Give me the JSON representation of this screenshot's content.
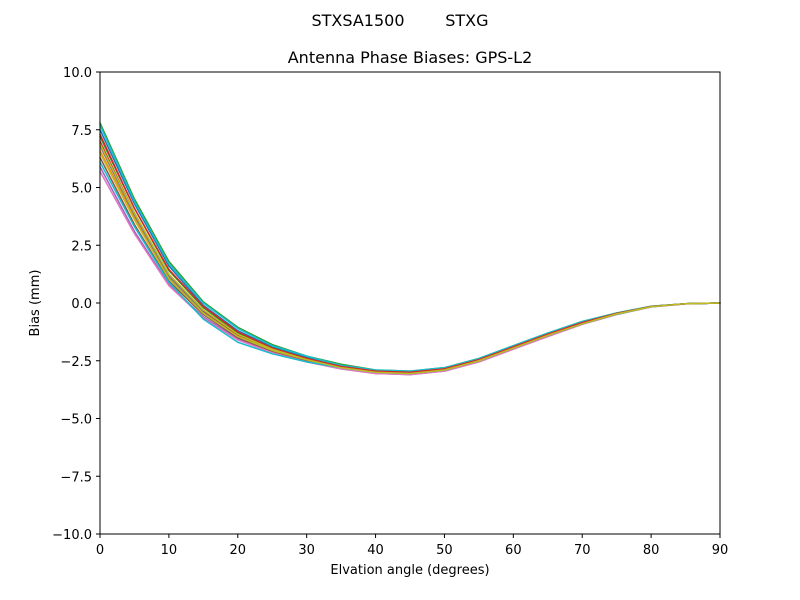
{
  "chart_data": {
    "type": "line",
    "suptitle": "STXSA1500        STXG",
    "title": "Antenna Phase Biases: GPS-L2",
    "xlabel": "Elvation angle (degrees)",
    "ylabel": "Bias (mm)",
    "xlim": [
      0,
      90
    ],
    "ylim": [
      -10,
      10
    ],
    "xticks": [
      0,
      10,
      20,
      30,
      40,
      50,
      60,
      70,
      80,
      90
    ],
    "yticks": [
      10.0,
      7.5,
      5.0,
      2.5,
      0.0,
      -2.5,
      -5.0,
      -7.5,
      -10.0
    ],
    "xtick_labels": [
      "0",
      "10",
      "20",
      "30",
      "40",
      "50",
      "60",
      "70",
      "80",
      "90"
    ],
    "ytick_labels": [
      "10.0",
      "7.5",
      "5.0",
      "2.5",
      "0.0",
      "−2.5",
      "−5.0",
      "−7.5",
      "−10.0"
    ],
    "grid": false,
    "legend": "none",
    "x": [
      0,
      5,
      10,
      15,
      20,
      25,
      30,
      35,
      40,
      45,
      50,
      55,
      60,
      65,
      70,
      75,
      80,
      85,
      90
    ],
    "series": [
      {
        "color": "#1f77b4",
        "values": [
          7.5,
          4.3,
          1.6,
          -0.1,
          -1.2,
          -1.9,
          -2.35,
          -2.7,
          -2.95,
          -3.0,
          -2.85,
          -2.45,
          -1.9,
          -1.35,
          -0.85,
          -0.45,
          -0.15,
          -0.03,
          0.0
        ]
      },
      {
        "color": "#ff7f0e",
        "values": [
          6.6,
          3.7,
          1.1,
          -0.45,
          -1.45,
          -2.05,
          -2.45,
          -2.8,
          -3.0,
          -3.05,
          -2.9,
          -2.5,
          -1.95,
          -1.4,
          -0.9,
          -0.48,
          -0.16,
          -0.03,
          0.0
        ]
      },
      {
        "color": "#2ca02c",
        "values": [
          7.2,
          4.1,
          1.4,
          -0.2,
          -1.3,
          -1.95,
          -2.4,
          -2.75,
          -2.95,
          -3.0,
          -2.85,
          -2.45,
          -1.9,
          -1.35,
          -0.85,
          -0.45,
          -0.15,
          -0.03,
          0.0
        ]
      },
      {
        "color": "#d62728",
        "values": [
          7.0,
          3.9,
          1.2,
          -0.35,
          -1.4,
          -2.0,
          -2.45,
          -2.8,
          -3.0,
          -3.05,
          -2.9,
          -2.5,
          -1.95,
          -1.4,
          -0.9,
          -0.47,
          -0.16,
          -0.03,
          0.0
        ]
      },
      {
        "color": "#9467bd",
        "values": [
          5.9,
          3.1,
          0.8,
          -0.6,
          -1.55,
          -2.15,
          -2.55,
          -2.85,
          -3.05,
          -3.1,
          -2.95,
          -2.55,
          -2.0,
          -1.45,
          -0.92,
          -0.5,
          -0.17,
          -0.04,
          0.0
        ]
      },
      {
        "color": "#8c564b",
        "values": [
          6.3,
          3.4,
          0.95,
          -0.5,
          -1.5,
          -2.1,
          -2.5,
          -2.8,
          -3.0,
          -3.05,
          -2.9,
          -2.5,
          -1.95,
          -1.4,
          -0.9,
          -0.48,
          -0.16,
          -0.03,
          0.0
        ]
      },
      {
        "color": "#e377c2",
        "values": [
          5.7,
          3.0,
          0.75,
          -0.65,
          -1.6,
          -2.15,
          -2.55,
          -2.85,
          -3.05,
          -3.1,
          -2.95,
          -2.55,
          -2.0,
          -1.45,
          -0.92,
          -0.5,
          -0.17,
          -0.04,
          0.0
        ]
      },
      {
        "color": "#7f7f7f",
        "values": [
          6.8,
          3.8,
          1.15,
          -0.4,
          -1.45,
          -2.05,
          -2.45,
          -2.8,
          -3.0,
          -3.05,
          -2.9,
          -2.5,
          -1.95,
          -1.4,
          -0.9,
          -0.47,
          -0.16,
          -0.03,
          0.0
        ]
      },
      {
        "color": "#bcbd22",
        "values": [
          6.5,
          3.6,
          1.05,
          -0.45,
          -1.45,
          -2.05,
          -2.45,
          -2.8,
          -3.0,
          -3.05,
          -2.9,
          -2.5,
          -1.95,
          -1.4,
          -0.9,
          -0.48,
          -0.16,
          -0.03,
          0.0
        ]
      },
      {
        "color": "#17becf",
        "values": [
          6.1,
          3.3,
          0.9,
          -0.7,
          -1.7,
          -2.2,
          -2.55,
          -2.8,
          -3.0,
          -3.05,
          -2.9,
          -2.5,
          -1.95,
          -1.4,
          -0.9,
          -0.48,
          -0.16,
          -0.03,
          0.0
        ]
      },
      {
        "color": "#2ca02c",
        "values": [
          7.8,
          4.5,
          1.8,
          0.05,
          -1.05,
          -1.8,
          -2.3,
          -2.65,
          -2.9,
          -2.95,
          -2.8,
          -2.4,
          -1.85,
          -1.3,
          -0.8,
          -0.43,
          -0.14,
          -0.03,
          0.0
        ]
      },
      {
        "color": "#17becf",
        "values": [
          7.7,
          4.4,
          1.7,
          0.0,
          -1.1,
          -1.85,
          -2.3,
          -2.7,
          -2.9,
          -2.95,
          -2.8,
          -2.4,
          -1.85,
          -1.3,
          -0.8,
          -0.43,
          -0.14,
          -0.03,
          0.0
        ]
      },
      {
        "color": "#d62728",
        "values": [
          7.3,
          4.1,
          1.45,
          -0.15,
          -1.25,
          -1.95,
          -2.4,
          -2.75,
          -2.95,
          -3.0,
          -2.85,
          -2.45,
          -1.9,
          -1.35,
          -0.85,
          -0.45,
          -0.15,
          -0.03,
          0.0
        ]
      },
      {
        "color": "#bcbd22",
        "values": [
          6.9,
          3.9,
          1.25,
          -0.3,
          -1.35,
          -2.0,
          -2.45,
          -2.8,
          -3.0,
          -3.05,
          -2.9,
          -2.5,
          -1.95,
          -1.4,
          -0.9,
          -0.47,
          -0.16,
          -0.03,
          0.0
        ]
      }
    ]
  }
}
